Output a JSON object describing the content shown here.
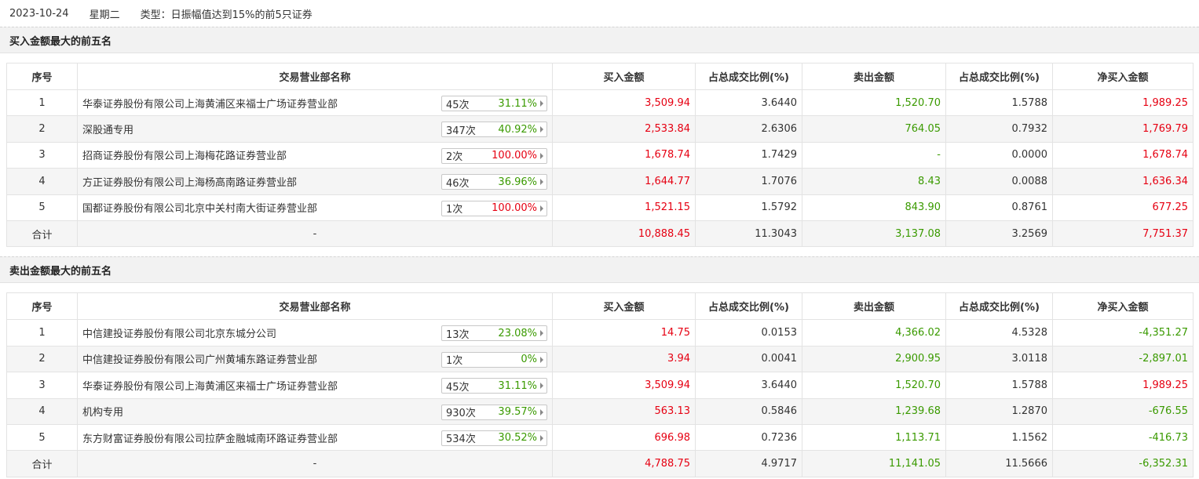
{
  "header": {
    "date": "2023-10-24",
    "weekday": "星期二",
    "type": "类型：日振幅值达到15%的前5只证券"
  },
  "colors": {
    "up": "#e60012",
    "down": "#3a9a00"
  },
  "columns": [
    "序号",
    "交易营业部名称",
    "买入金额",
    "占总成交比例(%)",
    "卖出金额",
    "占总成交比例(%)",
    "净买入金额"
  ],
  "buy_section": {
    "title": "买入金额最大的前五名",
    "rows": [
      {
        "idx": "1",
        "name": "华泰证券股份有限公司上海黄浦区来福士广场证券营业部",
        "times": "45次",
        "pct": "31.11%",
        "pct_color": "green",
        "buy": "3,509.94",
        "buy_ratio": "3.6440",
        "sell": "1,520.70",
        "sell_ratio": "1.5788",
        "net": "1,989.25",
        "net_color": "red"
      },
      {
        "idx": "2",
        "name": "深股通专用",
        "times": "347次",
        "pct": "40.92%",
        "pct_color": "green",
        "buy": "2,533.84",
        "buy_ratio": "2.6306",
        "sell": "764.05",
        "sell_ratio": "0.7932",
        "net": "1,769.79",
        "net_color": "red"
      },
      {
        "idx": "3",
        "name": "招商证券股份有限公司上海梅花路证券营业部",
        "times": "2次",
        "pct": "100.00%",
        "pct_color": "red",
        "buy": "1,678.74",
        "buy_ratio": "1.7429",
        "sell": "-",
        "sell_ratio": "0.0000",
        "net": "1,678.74",
        "net_color": "red"
      },
      {
        "idx": "4",
        "name": "方正证券股份有限公司上海杨高南路证券营业部",
        "times": "46次",
        "pct": "36.96%",
        "pct_color": "green",
        "buy": "1,644.77",
        "buy_ratio": "1.7076",
        "sell": "8.43",
        "sell_ratio": "0.0088",
        "net": "1,636.34",
        "net_color": "red"
      },
      {
        "idx": "5",
        "name": "国都证券股份有限公司北京中关村南大街证券营业部",
        "times": "1次",
        "pct": "100.00%",
        "pct_color": "red",
        "buy": "1,521.15",
        "buy_ratio": "1.5792",
        "sell": "843.90",
        "sell_ratio": "0.8761",
        "net": "677.25",
        "net_color": "red"
      }
    ],
    "total": {
      "label": "合计",
      "name": "-",
      "buy": "10,888.45",
      "buy_ratio": "11.3043",
      "sell": "3,137.08",
      "sell_ratio": "3.2569",
      "net": "7,751.37",
      "net_color": "red"
    }
  },
  "sell_section": {
    "title": "卖出金额最大的前五名",
    "rows": [
      {
        "idx": "1",
        "name": "中信建投证券股份有限公司北京东城分公司",
        "times": "13次",
        "pct": "23.08%",
        "pct_color": "green",
        "buy": "14.75",
        "buy_ratio": "0.0153",
        "sell": "4,366.02",
        "sell_ratio": "4.5328",
        "net": "-4,351.27",
        "net_color": "green"
      },
      {
        "idx": "2",
        "name": "中信建投证券股份有限公司广州黄埔东路证券营业部",
        "times": "1次",
        "pct": "0%",
        "pct_color": "green",
        "buy": "3.94",
        "buy_ratio": "0.0041",
        "sell": "2,900.95",
        "sell_ratio": "3.0118",
        "net": "-2,897.01",
        "net_color": "green"
      },
      {
        "idx": "3",
        "name": "华泰证券股份有限公司上海黄浦区来福士广场证券营业部",
        "times": "45次",
        "pct": "31.11%",
        "pct_color": "green",
        "buy": "3,509.94",
        "buy_ratio": "3.6440",
        "sell": "1,520.70",
        "sell_ratio": "1.5788",
        "net": "1,989.25",
        "net_color": "red"
      },
      {
        "idx": "4",
        "name": "机构专用",
        "times": "930次",
        "pct": "39.57%",
        "pct_color": "green",
        "buy": "563.13",
        "buy_ratio": "0.5846",
        "sell": "1,239.68",
        "sell_ratio": "1.2870",
        "net": "-676.55",
        "net_color": "green"
      },
      {
        "idx": "5",
        "name": "东方财富证券股份有限公司拉萨金融城南环路证券营业部",
        "times": "534次",
        "pct": "30.52%",
        "pct_color": "green",
        "buy": "696.98",
        "buy_ratio": "0.7236",
        "sell": "1,113.71",
        "sell_ratio": "1.1562",
        "net": "-416.73",
        "net_color": "green"
      }
    ],
    "total": {
      "label": "合计",
      "name": "-",
      "buy": "4,788.75",
      "buy_ratio": "4.9717",
      "sell": "11,141.05",
      "sell_ratio": "11.5666",
      "net": "-6,352.31",
      "net_color": "green"
    }
  }
}
